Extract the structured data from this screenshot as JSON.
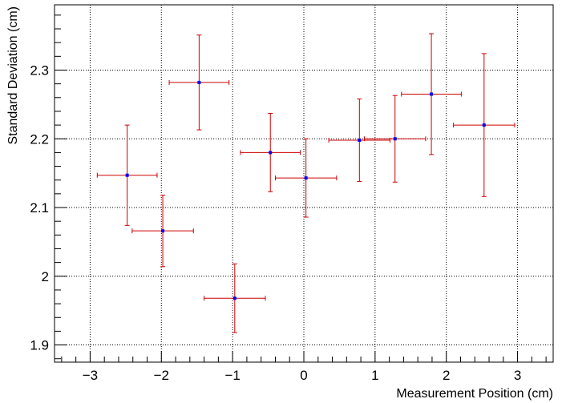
{
  "chart_data": {
    "type": "scatter",
    "title": "",
    "xlabel": "Measurement Position (cm)",
    "ylabel": "Standard Deviation (cm)",
    "xlim": [
      -3.5,
      3.5
    ],
    "ylim": [
      1.875,
      2.395
    ],
    "x_ticks": [
      -3,
      -2,
      -1,
      0,
      1,
      2,
      3
    ],
    "x_tick_labels": [
      "−3",
      "−2",
      "−1",
      "0",
      "1",
      "2",
      "3"
    ],
    "y_ticks": [
      1.9,
      2.0,
      2.1,
      2.2,
      2.3
    ],
    "y_tick_labels": [
      "1.9",
      "2",
      "2.1",
      "2.2",
      "2.3"
    ],
    "grid": true,
    "grid_style": "dotted",
    "marker_color": "#0000ff",
    "error_bar_color": "#cc0000",
    "points": [
      {
        "x": -2.48,
        "y": 2.147,
        "xerr": 0.42,
        "yerr": 0.073
      },
      {
        "x": -1.98,
        "y": 2.066,
        "xerr": 0.43,
        "yerr": 0.052
      },
      {
        "x": -1.47,
        "y": 2.282,
        "xerr": 0.42,
        "yerr": 0.069
      },
      {
        "x": -0.97,
        "y": 1.968,
        "xerr": 0.43,
        "yerr": 0.05
      },
      {
        "x": -0.47,
        "y": 2.18,
        "xerr": 0.42,
        "yerr": 0.057
      },
      {
        "x": 0.03,
        "y": 2.143,
        "xerr": 0.43,
        "yerr": 0.057
      },
      {
        "x": 0.78,
        "y": 2.198,
        "xerr": 0.43,
        "yerr": 0.06
      },
      {
        "x": 1.28,
        "y": 2.2,
        "xerr": 0.43,
        "yerr": 0.063
      },
      {
        "x": 1.79,
        "y": 2.265,
        "xerr": 0.42,
        "yerr": 0.088
      },
      {
        "x": 2.53,
        "y": 2.22,
        "xerr": 0.43,
        "yerr": 0.104
      }
    ]
  }
}
